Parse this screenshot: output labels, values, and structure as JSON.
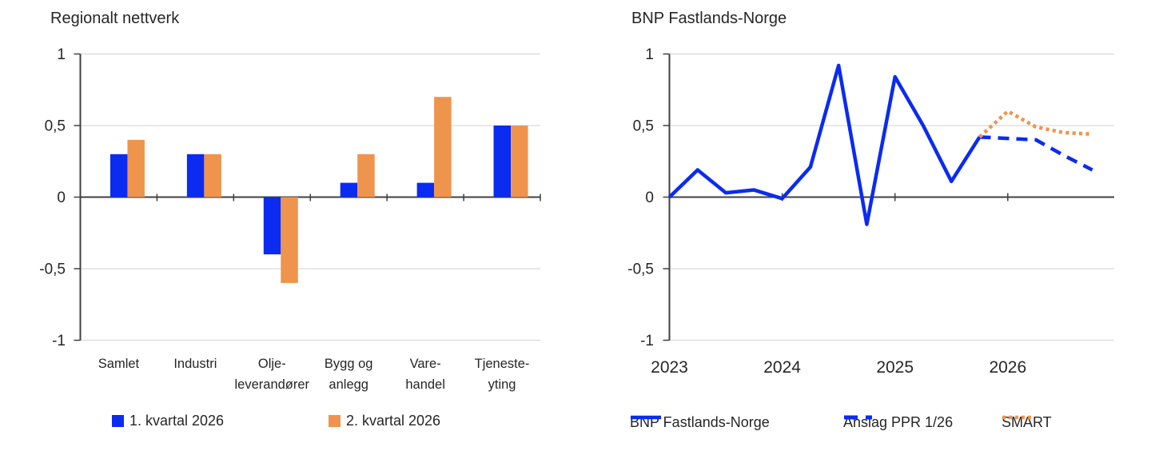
{
  "colors": {
    "blue": "#0b2bf0",
    "orange": "#ef944d",
    "grid": "#d9d9d9",
    "axis": "#404040",
    "text": "#262626"
  },
  "chart_data": [
    {
      "type": "bar",
      "title": "Regionalt nettverk",
      "categories": [
        [
          "Samlet"
        ],
        [
          "Industri"
        ],
        [
          "Olje-",
          "leverandører"
        ],
        [
          "Bygg og",
          "anlegg"
        ],
        [
          "Vare-",
          "handel"
        ],
        [
          "Tjeneste-",
          "yting"
        ]
      ],
      "series": [
        {
          "name": "1. kvartal 2026",
          "color": "#0b2bf0",
          "values": [
            0.3,
            0.3,
            -0.4,
            0.1,
            0.1,
            0.5
          ]
        },
        {
          "name": "2. kvartal 2026",
          "color": "#ef944d",
          "values": [
            0.4,
            0.3,
            -0.6,
            0.3,
            0.7,
            0.5
          ]
        }
      ],
      "ylim": [
        -1,
        1
      ],
      "y_ticks": [
        {
          "v": 1,
          "label": "1"
        },
        {
          "v": 0.5,
          "label": "0,5"
        },
        {
          "v": 0,
          "label": "0"
        },
        {
          "v": -0.5,
          "label": "-0,5"
        },
        {
          "v": -1,
          "label": "-1"
        }
      ],
      "grid": true,
      "legend_position": "bottom"
    },
    {
      "type": "line",
      "title": "BNP Fastlands-Norge",
      "x_tick_labels": [
        "2023",
        "2024",
        "2025",
        "2026"
      ],
      "x_unit": "quarters",
      "quarters_per_year": 4,
      "series": [
        {
          "name": "BNP Fastlands-Norge",
          "style": "solid",
          "color": "#0b2bf0",
          "x_start_quarter": 0,
          "values": [
            0.0,
            0.19,
            0.03,
            0.05,
            -0.01,
            0.21,
            0.92,
            -0.19,
            0.84,
            0.5,
            0.11,
            0.42
          ]
        },
        {
          "name": "Anslag PPR 1/26",
          "style": "dashed",
          "color": "#0b2bf0",
          "x_start_quarter": 11,
          "values": [
            0.42,
            0.41,
            0.4,
            0.29,
            0.19
          ]
        },
        {
          "name": "SMART",
          "style": "dotted",
          "color": "#ef944d",
          "x_start_quarter": 11,
          "values": [
            0.42,
            0.6,
            0.49,
            0.45,
            0.44
          ]
        }
      ],
      "ylim": [
        -1,
        1
      ],
      "y_ticks": [
        {
          "v": 1,
          "label": "1"
        },
        {
          "v": 0.5,
          "label": "0,5"
        },
        {
          "v": 0,
          "label": "0"
        },
        {
          "v": -0.5,
          "label": "-0,5"
        },
        {
          "v": -1,
          "label": "-1"
        }
      ],
      "grid": true,
      "legend_position": "bottom"
    }
  ]
}
